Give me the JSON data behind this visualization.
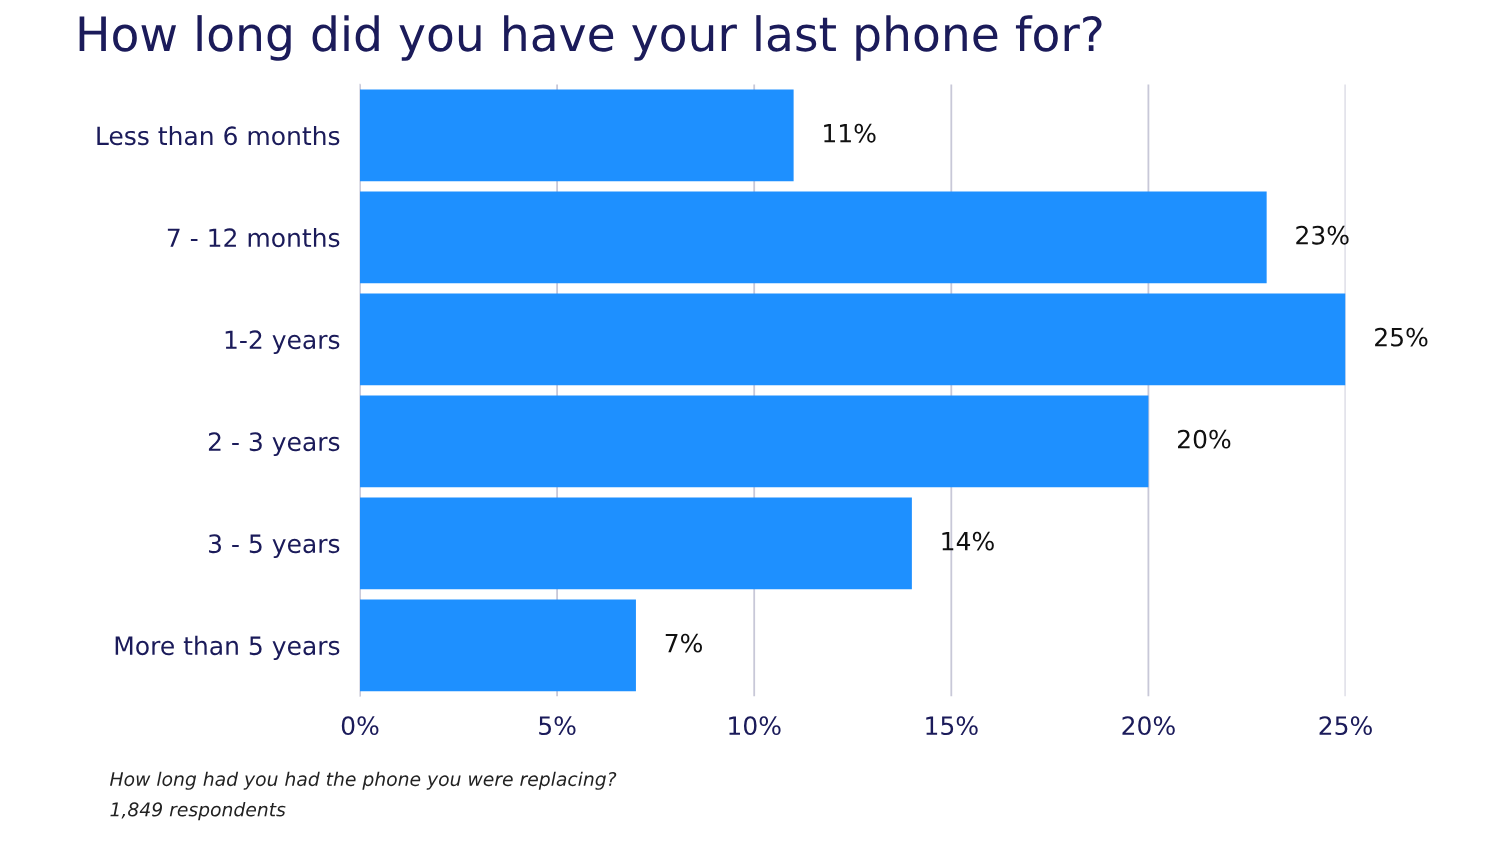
{
  "chart_data": {
    "type": "bar",
    "orientation": "horizontal",
    "title": "How long did you have your last phone for?",
    "categories": [
      "Less than 6 months",
      "7 - 12 months",
      "1-2 years",
      "2 - 3 years",
      "3 - 5 years",
      "More than 5 years"
    ],
    "values": [
      11,
      23,
      25,
      20,
      14,
      7
    ],
    "value_labels": [
      "11%",
      "23%",
      "25%",
      "20%",
      "14%",
      "7%"
    ],
    "color": "#1e90ff",
    "xlim": [
      0,
      25
    ],
    "xticks": [
      {
        "value": 0,
        "label": "0%"
      },
      {
        "value": 5,
        "label": "5%"
      },
      {
        "value": 10,
        "label": "10%"
      },
      {
        "value": 15,
        "label": "15%"
      },
      {
        "value": 20,
        "label": "20%"
      },
      {
        "value": 25,
        "label": "25%"
      }
    ],
    "grid": "x",
    "annotations": [
      "How long had you had the phone you were replacing?",
      "1,849 respondents"
    ]
  }
}
